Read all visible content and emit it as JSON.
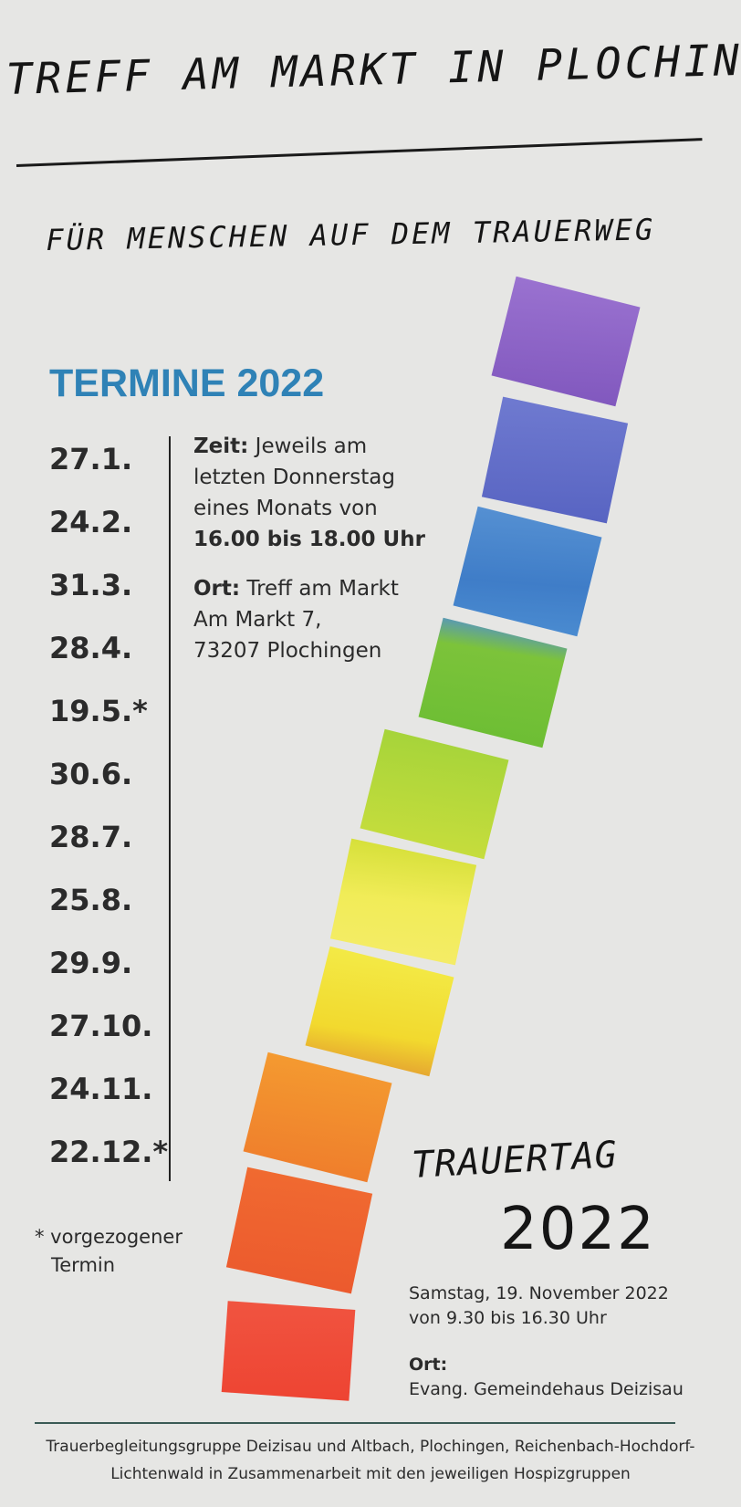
{
  "header": {
    "title": "TREFF AM MARKT IN PLOCHINGEN",
    "subtitle": "FÜR MENSCHEN AUF DEM TRAUERWEG"
  },
  "termine": {
    "heading": "TERMINE 2022",
    "dates": [
      "27.1.",
      "24.2.",
      "31.3.",
      "28.4.",
      "19.5.*",
      "30.6.",
      "28.7.",
      "25.8.",
      "29.9.",
      "27.10.",
      "24.11.",
      "22.12.*"
    ],
    "footnote_line1": "* vorgezogener",
    "footnote_line2": "Termin"
  },
  "info": {
    "zeit_label": "Zeit:",
    "zeit_line1": " Jeweils am",
    "zeit_line2": "letzten Donnerstag",
    "zeit_line3": "eines Monats von",
    "zeit_time": "16.00 bis 18.00 Uhr",
    "ort_label": "Ort:",
    "ort_line1": " Treff am Markt",
    "ort_line2": "Am Markt 7,",
    "ort_line3": "73207 Plochingen"
  },
  "trauertag": {
    "word": "TRAUERTAG",
    "year": "2022",
    "date_line1": "Samstag, 19. November 2022",
    "date_line2": "von 9.30 bis 16.30 Uhr",
    "ort_label": "Ort:",
    "ort_value": "Evang. Gemeindehaus Deizisau"
  },
  "footer": {
    "line1": "Trauerbegleitungsgruppe Deizisau und Altbach, Plochingen, Reichenbach-Hochdorf-",
    "line2": "Lichtenwald in Zusammenarbeit mit den jeweiligen Hospizgruppen"
  },
  "colors": {
    "heading_blue": "#2f82b6",
    "swatches": [
      "#8a62c2",
      "#6470c8",
      "#4b86cc",
      "#7fc63a",
      "#b4d637",
      "#e6e63f",
      "#f1d632",
      "#f0892e",
      "#ee6230",
      "#ee4a35"
    ]
  }
}
